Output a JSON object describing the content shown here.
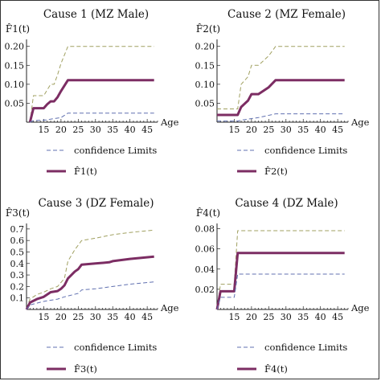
{
  "chart_data": [
    {
      "type": "line",
      "title": "Cause 1 (MZ Male)",
      "ylabel": "F̂1(t)",
      "xlabel": "Age",
      "xlim": [
        10,
        48
      ],
      "ylim": [
        0,
        0.21
      ],
      "xticks": [
        15,
        20,
        25,
        30,
        35,
        40,
        45
      ],
      "yticks": [
        0.05,
        0.1,
        0.15,
        0.2
      ],
      "ytick_labels": [
        "0.05",
        "0.10",
        "0.15",
        "0.20"
      ],
      "legend": {
        "ci_label": "confidence Limits",
        "est_label": "F̂1(t)"
      },
      "series": [
        {
          "role": "upper",
          "style": "dashed",
          "color": "#a0a060",
          "x": [
            11,
            12,
            15,
            16,
            17,
            18,
            19,
            20,
            22,
            47
          ],
          "y": [
            0,
            0.07,
            0.07,
            0.085,
            0.1,
            0.1,
            0.125,
            0.155,
            0.2,
            0.2
          ]
        },
        {
          "role": "estimate",
          "style": "solid",
          "color": "#7c2d63",
          "x": [
            11,
            12,
            15,
            16,
            17,
            18,
            19,
            20,
            22,
            47
          ],
          "y": [
            0,
            0.037,
            0.037,
            0.047,
            0.055,
            0.055,
            0.066,
            0.082,
            0.111,
            0.111
          ]
        },
        {
          "role": "lower",
          "style": "dashed",
          "color": "#6070b0",
          "x": [
            11,
            12,
            16,
            17,
            20,
            22,
            47
          ],
          "y": [
            0,
            0.004,
            0.006,
            0.008,
            0.012,
            0.024,
            0.024
          ]
        }
      ]
    },
    {
      "type": "line",
      "title": "Cause 2 (MZ Female)",
      "ylabel": "F̂2(t)",
      "xlabel": "Age",
      "xlim": [
        10,
        48
      ],
      "ylim": [
        0,
        0.21
      ],
      "xticks": [
        15,
        20,
        25,
        30,
        35,
        40,
        45
      ],
      "yticks": [
        0.05,
        0.1,
        0.15,
        0.2
      ],
      "ytick_labels": [
        "0.05",
        "0.10",
        "0.15",
        "0.20"
      ],
      "legend": {
        "ci_label": "confidence Limits",
        "est_label": "F̂2(t)"
      },
      "series": [
        {
          "role": "upper",
          "style": "dashed",
          "color": "#a0a060",
          "x": [
            10,
            16,
            17,
            19,
            20,
            22,
            25,
            27,
            47
          ],
          "y": [
            0.035,
            0.035,
            0.1,
            0.12,
            0.15,
            0.15,
            0.175,
            0.2,
            0.2
          ]
        },
        {
          "role": "estimate",
          "style": "solid",
          "color": "#7c2d63",
          "x": [
            10,
            16,
            17,
            19,
            20,
            22,
            25,
            27,
            47
          ],
          "y": [
            0.019,
            0.019,
            0.04,
            0.057,
            0.074,
            0.074,
            0.092,
            0.111,
            0.111
          ]
        },
        {
          "role": "lower",
          "style": "dashed",
          "color": "#6070b0",
          "x": [
            10,
            16,
            17,
            19,
            22,
            27,
            47
          ],
          "y": [
            0.003,
            0.003,
            0.005,
            0.008,
            0.012,
            0.022,
            0.022
          ]
        }
      ]
    },
    {
      "type": "line",
      "title": "Cause 3 (DZ Female)",
      "ylabel": "F̂3(t)",
      "xlabel": "Age",
      "xlim": [
        10,
        48
      ],
      "ylim": [
        0,
        0.72
      ],
      "xticks": [
        15,
        20,
        25,
        30,
        35,
        40,
        45
      ],
      "yticks": [
        0.1,
        0.2,
        0.3,
        0.4,
        0.5,
        0.6,
        0.7
      ],
      "ytick_labels": [
        "0.1",
        "0.2",
        "0.3",
        "0.4",
        "0.5",
        "0.6",
        "0.7"
      ],
      "legend": {
        "ci_label": "confidence Limits",
        "est_label": "F̂3(t)"
      },
      "series": [
        {
          "role": "upper",
          "style": "dashed",
          "color": "#a0a060",
          "x": [
            10,
            11,
            13,
            15,
            17,
            19,
            21,
            22,
            24,
            26,
            30,
            35,
            40,
            47
          ],
          "y": [
            0.01,
            0.09,
            0.13,
            0.15,
            0.18,
            0.2,
            0.27,
            0.42,
            0.52,
            0.6,
            0.62,
            0.65,
            0.67,
            0.69
          ]
        },
        {
          "role": "estimate",
          "style": "solid",
          "color": "#7c2d63",
          "x": [
            10,
            11,
            13,
            15,
            17,
            19,
            20,
            21,
            22,
            24,
            25,
            26,
            30,
            34,
            35,
            40,
            47
          ],
          "y": [
            0.0,
            0.06,
            0.09,
            0.11,
            0.15,
            0.16,
            0.18,
            0.21,
            0.27,
            0.33,
            0.35,
            0.39,
            0.4,
            0.41,
            0.42,
            0.44,
            0.46
          ]
        },
        {
          "role": "lower",
          "style": "dashed",
          "color": "#6070b0",
          "x": [
            10,
            11,
            15,
            19,
            21,
            25,
            26,
            30,
            35,
            40,
            47
          ],
          "y": [
            0.0,
            0.04,
            0.07,
            0.09,
            0.11,
            0.14,
            0.17,
            0.18,
            0.2,
            0.22,
            0.24
          ]
        }
      ]
    },
    {
      "type": "line",
      "title": "Cause 4 (DZ Male)",
      "ylabel": "F̂4(t)",
      "xlabel": "Age",
      "xlim": [
        10,
        48
      ],
      "ylim": [
        0,
        0.082
      ],
      "xticks": [
        15,
        20,
        25,
        30,
        35,
        40,
        45
      ],
      "yticks": [
        0.02,
        0.04,
        0.06,
        0.08
      ],
      "ytick_labels": [
        "0.02",
        "0.04",
        "0.06",
        "0.08"
      ],
      "legend": {
        "ci_label": "confidence Limits",
        "est_label": "F̂4(t)"
      },
      "series": [
        {
          "role": "upper",
          "style": "dashed",
          "color": "#a0a060",
          "x": [
            10,
            11,
            15,
            16,
            47
          ],
          "y": [
            0.0,
            0.025,
            0.025,
            0.078,
            0.078
          ]
        },
        {
          "role": "estimate",
          "style": "solid",
          "color": "#7c2d63",
          "x": [
            10,
            11,
            15,
            16,
            47
          ],
          "y": [
            0.0,
            0.018,
            0.018,
            0.056,
            0.056
          ]
        },
        {
          "role": "lower",
          "style": "dashed",
          "color": "#6070b0",
          "x": [
            10,
            11,
            15,
            16,
            47
          ],
          "y": [
            0.0,
            0.012,
            0.012,
            0.035,
            0.035
          ]
        }
      ]
    }
  ]
}
